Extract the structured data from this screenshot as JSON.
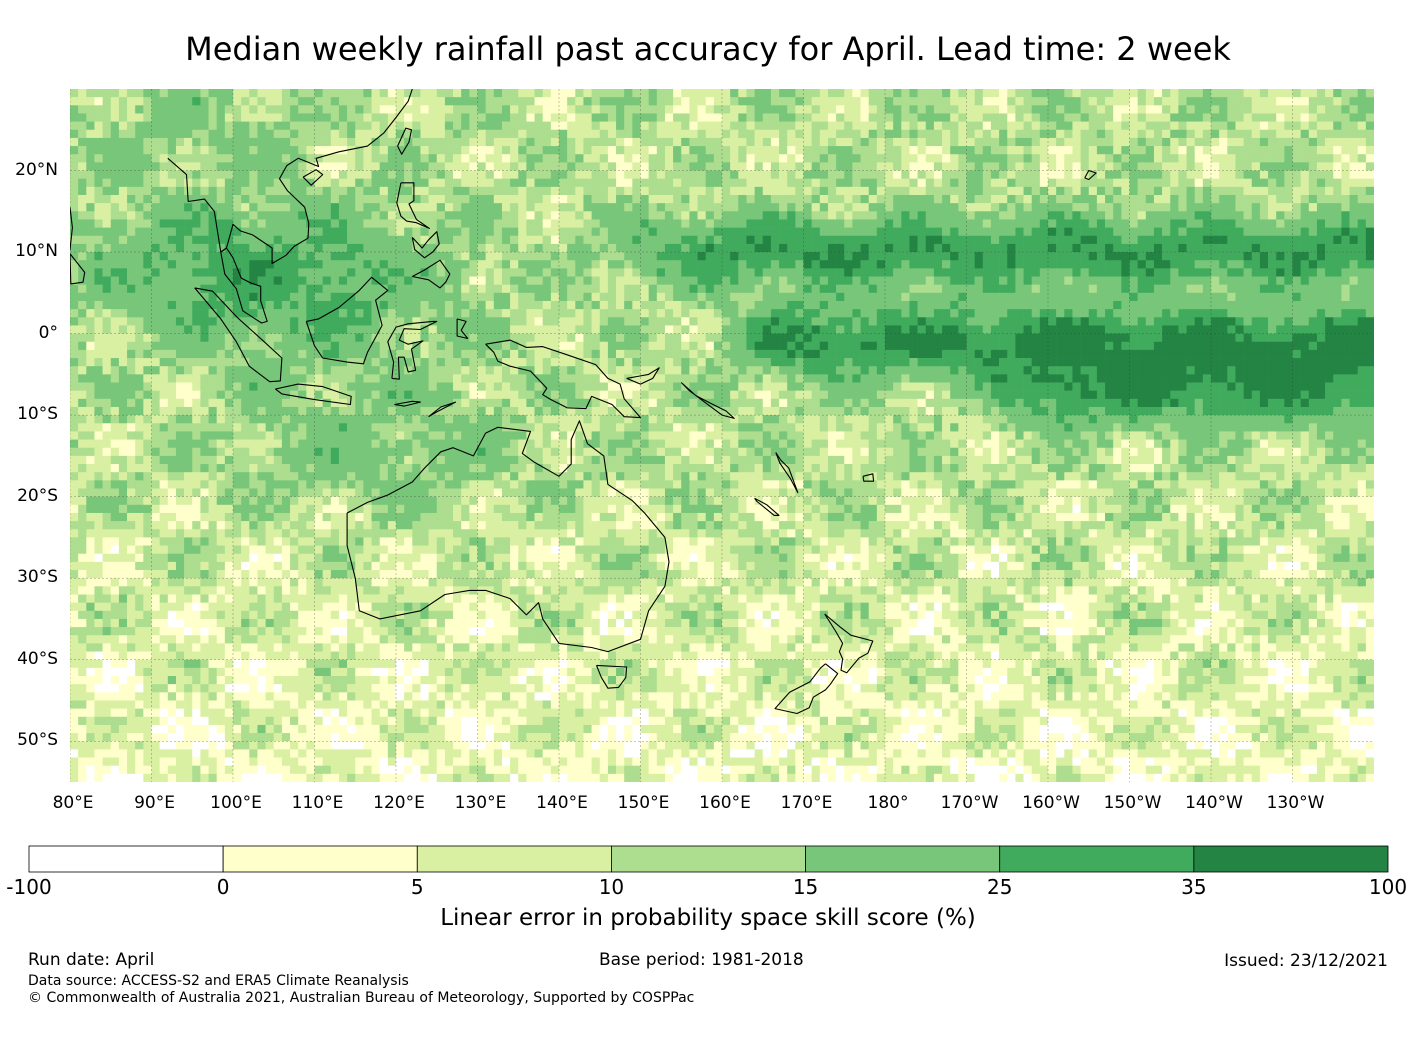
{
  "title": "Median weekly rainfall past accuracy for April. Lead time: 2 week",
  "map": {
    "lon_range": [
      80,
      240
    ],
    "lat_range": [
      -55,
      30
    ],
    "lat_labels": [
      {
        "lat": 20,
        "text": "20°N"
      },
      {
        "lat": 10,
        "text": "10°N"
      },
      {
        "lat": 0,
        "text": "0°"
      },
      {
        "lat": -10,
        "text": "10°S"
      },
      {
        "lat": -20,
        "text": "20°S"
      },
      {
        "lat": -30,
        "text": "30°S"
      },
      {
        "lat": -40,
        "text": "40°S"
      },
      {
        "lat": -50,
        "text": "50°S"
      }
    ],
    "lon_labels": [
      {
        "lon": 80,
        "text": "80°E"
      },
      {
        "lon": 90,
        "text": "90°E"
      },
      {
        "lon": 100,
        "text": "100°E"
      },
      {
        "lon": 110,
        "text": "110°E"
      },
      {
        "lon": 120,
        "text": "120°E"
      },
      {
        "lon": 130,
        "text": "130°E"
      },
      {
        "lon": 140,
        "text": "140°E"
      },
      {
        "lon": 150,
        "text": "150°E"
      },
      {
        "lon": 160,
        "text": "160°E"
      },
      {
        "lon": 170,
        "text": "170°E"
      },
      {
        "lon": 180,
        "text": "180°"
      },
      {
        "lon": 190,
        "text": "170°W"
      },
      {
        "lon": 200,
        "text": "160°W"
      },
      {
        "lon": 210,
        "text": "150°W"
      },
      {
        "lon": 220,
        "text": "140°W"
      },
      {
        "lon": 230,
        "text": "130°W"
      }
    ]
  },
  "colorbar": {
    "bins": [
      {
        "from": -100,
        "to": 0,
        "color": "#ffffff"
      },
      {
        "from": 0,
        "to": 5,
        "color": "#ffffcc"
      },
      {
        "from": 5,
        "to": 10,
        "color": "#d9f0a3"
      },
      {
        "from": 10,
        "to": 15,
        "color": "#addd8e"
      },
      {
        "from": 15,
        "to": 25,
        "color": "#78c679"
      },
      {
        "from": 25,
        "to": 35,
        "color": "#41ab5d"
      },
      {
        "from": 35,
        "to": 100,
        "color": "#238443"
      }
    ],
    "ticks": [
      "-100",
      "0",
      "5",
      "10",
      "15",
      "25",
      "35",
      "100"
    ],
    "label": "Linear error in probability space skill score (%)"
  },
  "footer": {
    "run_date": "Run date: April",
    "base_period": "Base period: 1981-2018",
    "issued": "Issued: 23/12/2021",
    "data_source": "Data source: ACCESS-S2 and ERA5 Climate Reanalysis",
    "copyright": "© Commonwealth of Australia 2021, Australian Bureau of Meteorology, Supported by COSPPac"
  }
}
